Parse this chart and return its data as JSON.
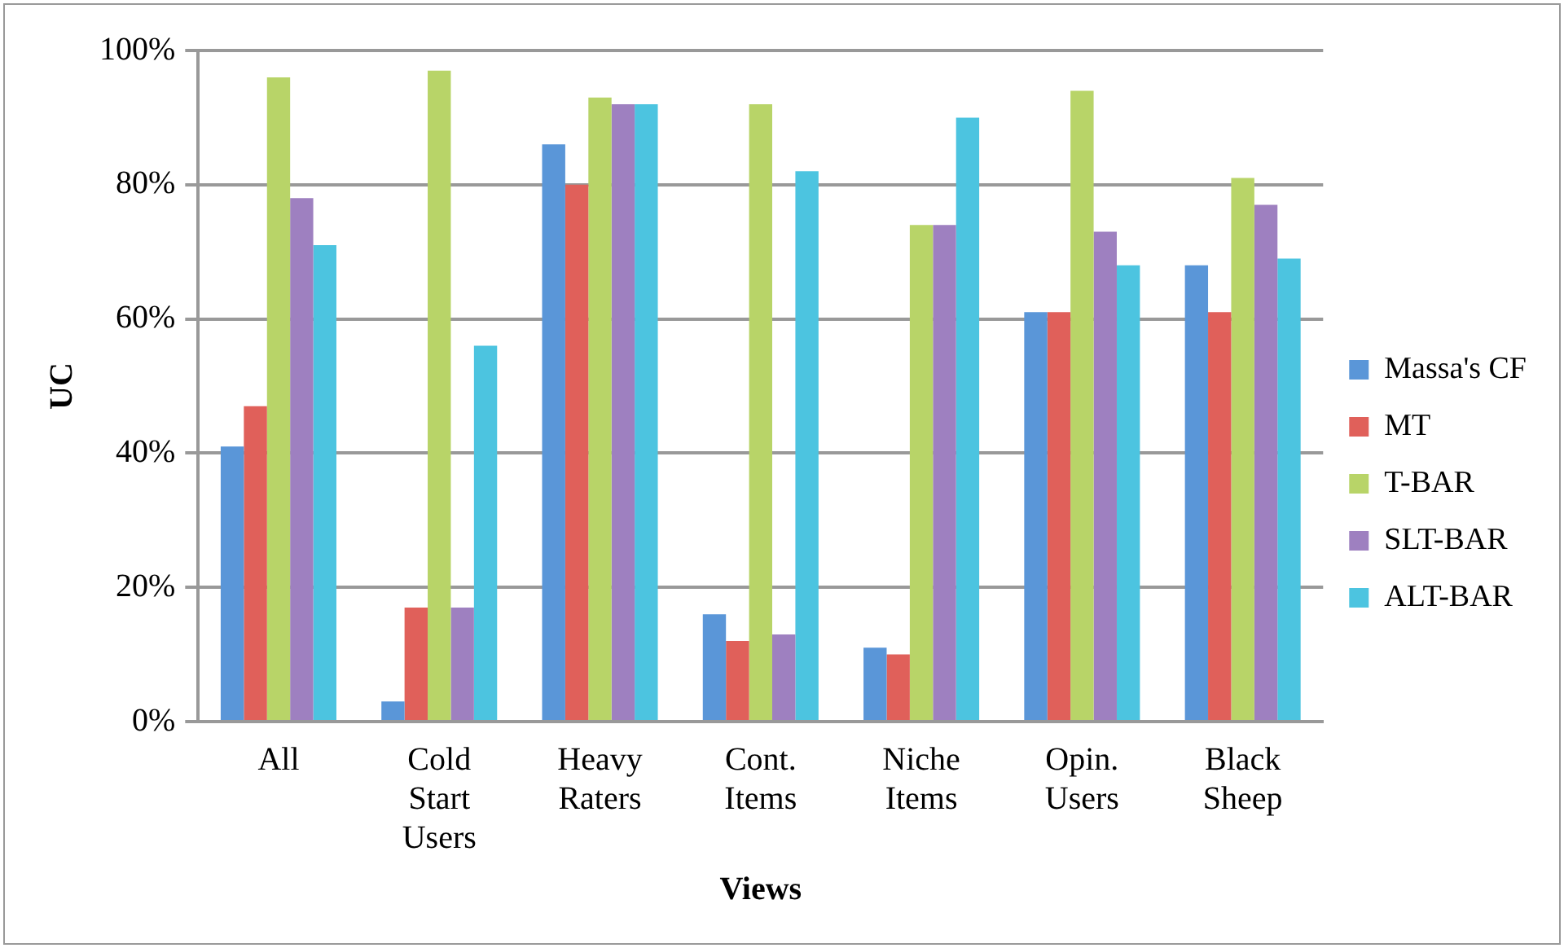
{
  "chart_data": {
    "type": "bar",
    "xlabel": "Views",
    "ylabel": "UC",
    "categories": [
      "All",
      "Cold Start Users",
      "Heavy Raters",
      "Cont. Items",
      "Niche Items",
      "Opin. Users",
      "Black Sheep"
    ],
    "series": [
      {
        "name": "Massa's CF",
        "color": "#5a96d8",
        "values": [
          41,
          3,
          86,
          16,
          11,
          61,
          68
        ]
      },
      {
        "name": "MT",
        "color": "#e0605a",
        "values": [
          47,
          17,
          80,
          12,
          10,
          61,
          61
        ]
      },
      {
        "name": "T-BAR",
        "color": "#b8d468",
        "values": [
          96,
          97,
          93,
          92,
          74,
          94,
          81
        ]
      },
      {
        "name": "SLT-BAR",
        "color": "#9e80c0",
        "values": [
          78,
          17,
          92,
          13,
          74,
          73,
          77
        ]
      },
      {
        "name": "ALT-BAR",
        "color": "#4cc4e0",
        "values": [
          71,
          56,
          92,
          82,
          90,
          68,
          69
        ]
      }
    ],
    "ylim": [
      0,
      100
    ],
    "yticks": [
      {
        "value": 0,
        "label": "0%"
      },
      {
        "value": 20,
        "label": "20%"
      },
      {
        "value": 40,
        "label": "40%"
      },
      {
        "value": 60,
        "label": "60%"
      },
      {
        "value": 80,
        "label": "80%"
      },
      {
        "value": 100,
        "label": "100%"
      }
    ],
    "grid": "y",
    "legend": "right"
  }
}
